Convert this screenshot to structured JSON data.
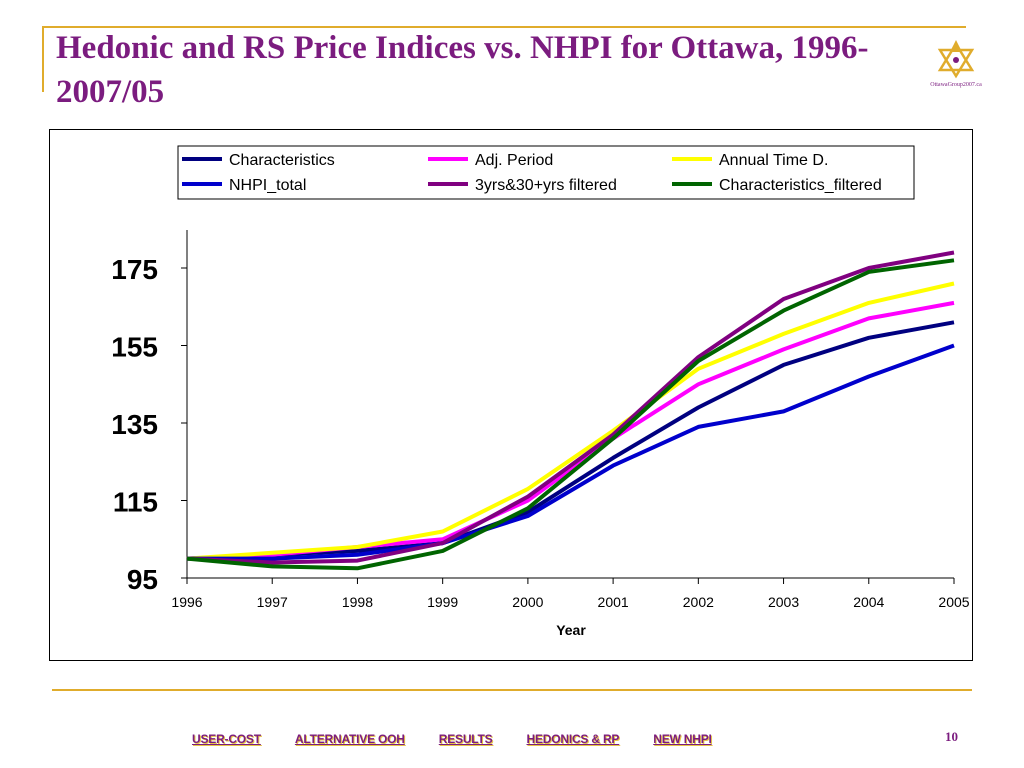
{
  "slide": {
    "title": "Hedonic and RS Price Indices vs. NHPI for Ottawa, 1996-2007/05",
    "logo_text": "OttawaGroup2007.ca",
    "page_number": "10"
  },
  "footer": {
    "nav": [
      "USER-COST",
      "ALTERNATIVE OOH",
      "RESULTS",
      "HEDONICS & RP",
      "NEW NHPI"
    ]
  },
  "colors": {
    "accent": "#e0ac2c",
    "title": "#7b1c7f"
  },
  "chart_data": {
    "type": "line",
    "title": "",
    "xlabel": "Year",
    "ylabel": "",
    "x": [
      1996,
      1997,
      1998,
      1999,
      2000,
      2001,
      2002,
      2003,
      2004,
      2005
    ],
    "ylim": [
      95,
      185
    ],
    "yticks": [
      95,
      115,
      135,
      155,
      175
    ],
    "grid": false,
    "legend_position": "top",
    "series": [
      {
        "name": "Characteristics",
        "color": "#000080",
        "values": [
          100,
          101,
          102,
          104,
          112,
          126,
          139,
          150,
          157,
          161
        ]
      },
      {
        "name": "Adj. Period",
        "color": "#ff00ff",
        "values": [
          100,
          101,
          103,
          105,
          115,
          131,
          145,
          154,
          162,
          166
        ]
      },
      {
        "name": "Annual Time D.",
        "color": "#ffff00",
        "values": [
          100,
          101.5,
          103,
          107,
          118,
          133,
          149,
          158,
          166,
          171
        ]
      },
      {
        "name": "NHPI_total",
        "color": "#0000cc",
        "values": [
          100,
          100,
          101,
          104,
          111,
          124,
          134,
          138,
          147,
          155
        ]
      },
      {
        "name": "3yrs&30+yrs filtered",
        "color": "#800080",
        "values": [
          100,
          99,
          99.5,
          104,
          116,
          132,
          152,
          167,
          175,
          179
        ]
      },
      {
        "name": "Characteristics_filtered",
        "color": "#006400",
        "values": [
          100,
          98,
          97.5,
          102,
          113,
          131,
          151,
          164,
          174,
          177
        ]
      }
    ]
  }
}
